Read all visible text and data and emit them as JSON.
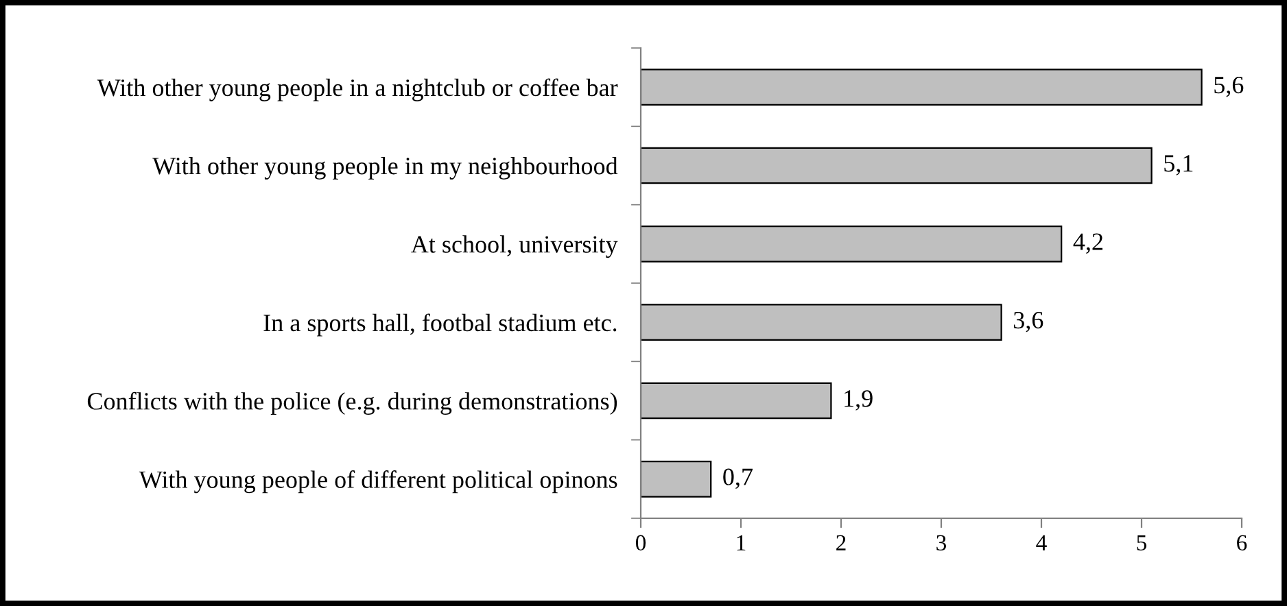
{
  "chart_data": {
    "type": "bar",
    "orientation": "horizontal",
    "categories": [
      "With other young people in a nightclub or coffee bar",
      "With other young people in my neighbourhood",
      "At school, university",
      "In a sports hall, footbal stadium etc.",
      "Conflicts with the police (e.g. during demonstrations)",
      "With young people of different political opinons"
    ],
    "values": [
      5.6,
      5.1,
      4.2,
      3.6,
      1.9,
      0.7
    ],
    "value_labels": [
      "5,6",
      "5,1",
      "4,2",
      "3,6",
      "1,9",
      "0,7"
    ],
    "color": "#bfbfbf",
    "xlim": [
      0,
      6
    ],
    "xticks": [
      0,
      1,
      2,
      3,
      4,
      5,
      6
    ],
    "grid": false,
    "legend": false
  }
}
